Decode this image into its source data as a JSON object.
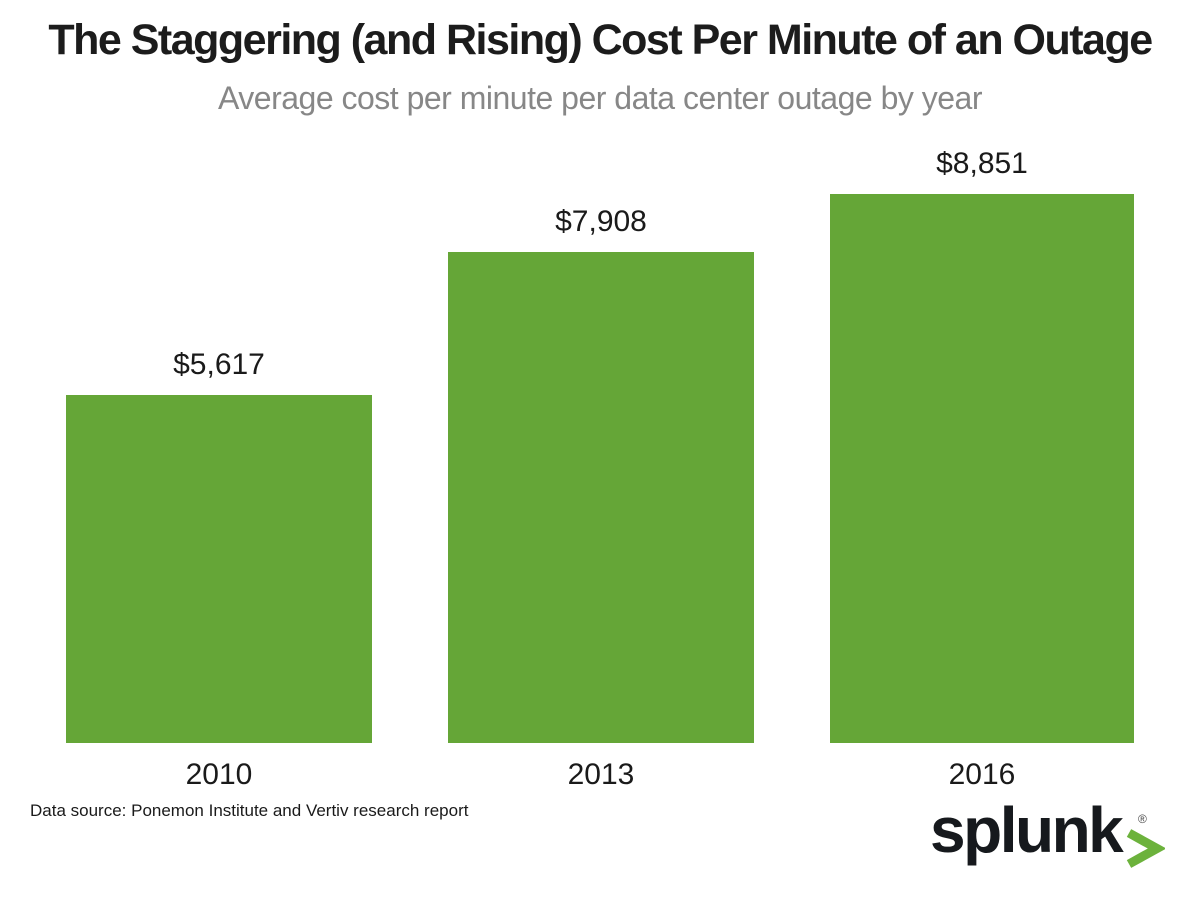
{
  "header": {
    "title": "The Staggering (and Rising) Cost Per Minute of an Outage",
    "subtitle": "Average cost per minute per data center outage by year"
  },
  "chart_data": {
    "type": "bar",
    "title": "The Staggering (and Rising) Cost Per Minute of an Outage",
    "subtitle": "Average cost per minute per data center outage by year",
    "categories": [
      "2010",
      "2013",
      "2016"
    ],
    "values": [
      5617,
      7908,
      8851
    ],
    "value_labels": [
      "$5,617",
      "$7,908",
      "$8,851"
    ],
    "xlabel": "",
    "ylabel": "",
    "ylim": [
      0,
      8851
    ],
    "grid": false,
    "legend": false,
    "bar_color": "#65a637",
    "label_color": "#1a1a1a"
  },
  "footer": {
    "data_source": "Data source: Ponemon Institute and Vertiv research report",
    "logo": {
      "wordmark": "splunk",
      "registered_mark": "®",
      "chevron_color": "#6cb23c"
    }
  }
}
